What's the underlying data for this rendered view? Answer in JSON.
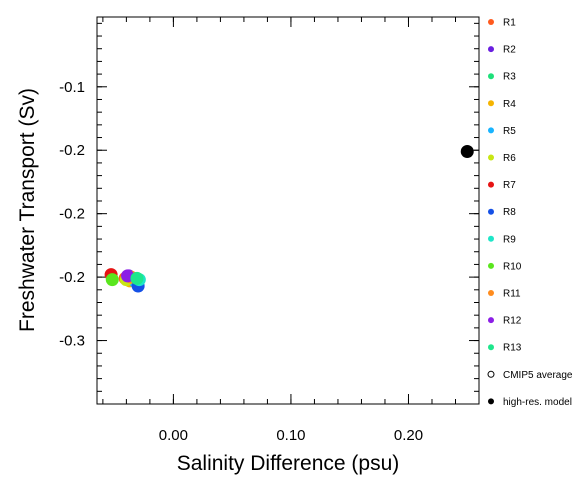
{
  "chart_data": {
    "type": "scatter",
    "title": "",
    "xlabel": "Salinity Difference (psu)",
    "ylabel": "Freshwater Transport (Sv)",
    "xlim": [
      -0.065,
      0.26
    ],
    "ylim": [
      -0.35,
      -0.045
    ],
    "xticks": [
      0.0,
      0.1,
      0.2
    ],
    "xtick_labels": [
      "0.00",
      "0.10",
      "0.20"
    ],
    "yticks": [
      -0.1,
      -0.15,
      -0.2,
      -0.25,
      -0.3
    ],
    "ytick_labels": [
      "-0.1",
      "-0.2",
      "-0.2",
      "-0.2",
      "-0.3"
    ],
    "grid": false,
    "legend_position": "right",
    "series": [
      {
        "name": "R1",
        "color": "#ff5a1e",
        "x": -0.041,
        "y": -0.251
      },
      {
        "name": "R2",
        "color": "#6a1ee0",
        "x": -0.038,
        "y": -0.249
      },
      {
        "name": "R3",
        "color": "#1ee07a",
        "x": -0.034,
        "y": -0.251
      },
      {
        "name": "R4",
        "color": "#f5b400",
        "x": -0.037,
        "y": -0.253
      },
      {
        "name": "R5",
        "color": "#19b4ff",
        "x": -0.033,
        "y": -0.253
      },
      {
        "name": "R6",
        "color": "#c8e614",
        "x": -0.04,
        "y": -0.252
      },
      {
        "name": "R7",
        "color": "#e61414",
        "x": -0.053,
        "y": -0.248
      },
      {
        "name": "R8",
        "color": "#1450e6",
        "x": -0.03,
        "y": -0.257
      },
      {
        "name": "R9",
        "color": "#1ee6c8",
        "x": -0.029,
        "y": -0.252
      },
      {
        "name": "R10",
        "color": "#5ae61e",
        "x": -0.052,
        "y": -0.252
      },
      {
        "name": "R11",
        "color": "#ff8c1e",
        "x": -0.036,
        "y": -0.25
      },
      {
        "name": "R12",
        "color": "#8c1ee6",
        "x": -0.039,
        "y": -0.249
      },
      {
        "name": "R13",
        "color": "#1ee68c",
        "x": -0.031,
        "y": -0.251
      },
      {
        "name": "CMIP5 average",
        "color": "#000000",
        "marker": "hollow",
        "x": null,
        "y": null
      },
      {
        "name": "high-res. model",
        "color": "#000000",
        "x": 0.25,
        "y": -0.151
      }
    ]
  }
}
